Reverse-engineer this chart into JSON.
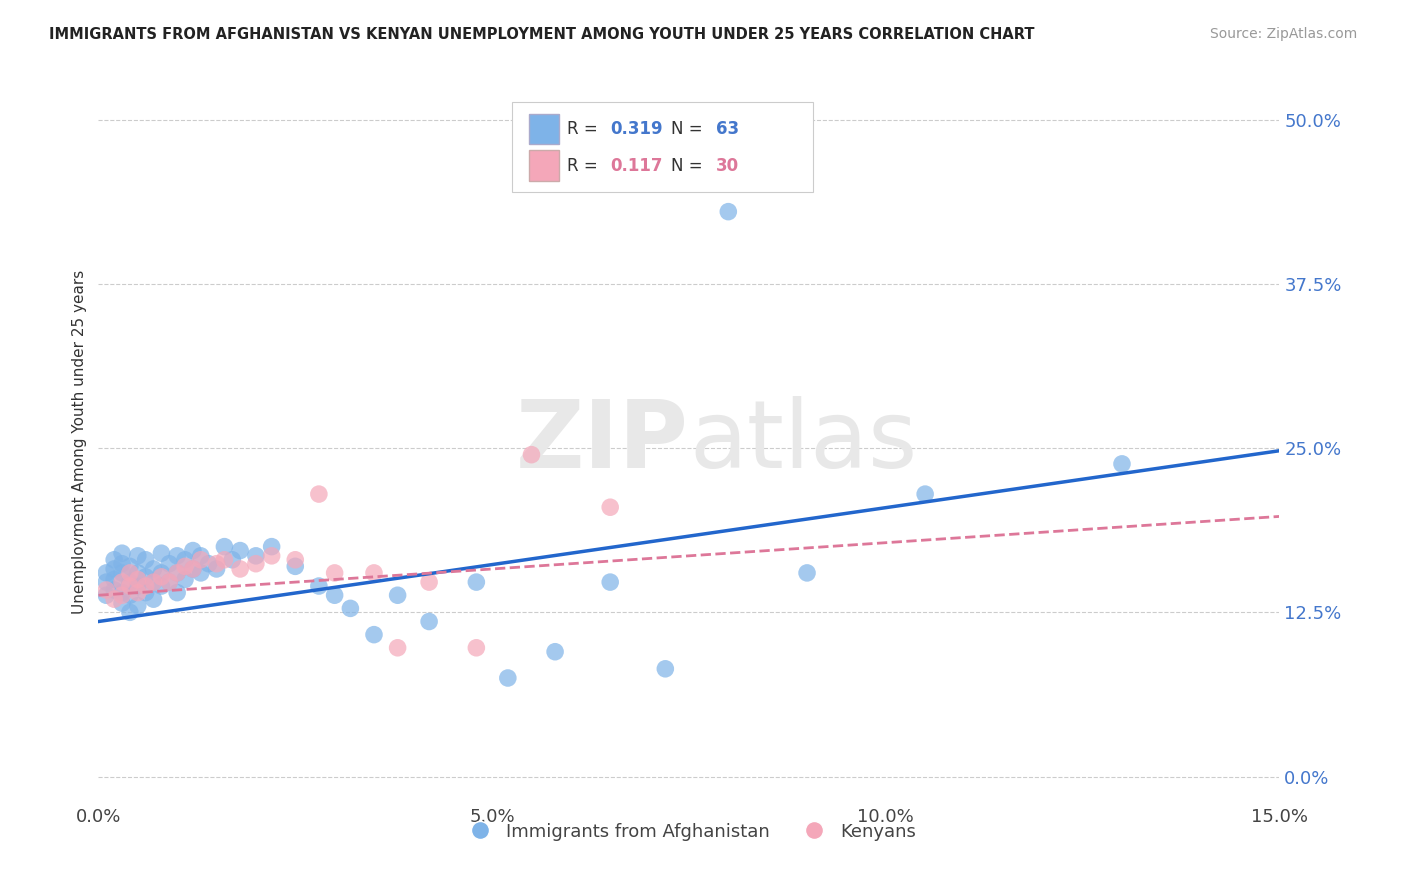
{
  "title": "IMMIGRANTS FROM AFGHANISTAN VS KENYAN UNEMPLOYMENT AMONG YOUTH UNDER 25 YEARS CORRELATION CHART",
  "source": "Source: ZipAtlas.com",
  "ylabel": "Unemployment Among Youth under 25 years",
  "xmin": 0.0,
  "xmax": 0.15,
  "ymin": -0.02,
  "ymax": 0.53,
  "yticks": [
    0.0,
    0.125,
    0.25,
    0.375,
    0.5
  ],
  "ytick_labels": [
    "0.0%",
    "12.5%",
    "25.0%",
    "37.5%",
    "50.0%"
  ],
  "xticks": [
    0.0,
    0.05,
    0.1,
    0.15
  ],
  "xtick_labels": [
    "0.0%",
    "5.0%",
    "10.0%",
    "15.0%"
  ],
  "legend_labels": [
    "Immigrants from Afghanistan",
    "Kenyans"
  ],
  "legend_R": [
    "0.319",
    "0.117"
  ],
  "legend_N": [
    "63",
    "30"
  ],
  "blue_color": "#7eb3e8",
  "pink_color": "#f4a7b9",
  "blue_line_color": "#2266cc",
  "pink_line_color": "#dd7799",
  "watermark_zip": "ZIP",
  "watermark_atlas": "atlas",
  "blue_scatter_x": [
    0.001,
    0.001,
    0.001,
    0.002,
    0.002,
    0.002,
    0.002,
    0.003,
    0.003,
    0.003,
    0.003,
    0.003,
    0.004,
    0.004,
    0.004,
    0.004,
    0.005,
    0.005,
    0.005,
    0.005,
    0.006,
    0.006,
    0.006,
    0.007,
    0.007,
    0.007,
    0.008,
    0.008,
    0.008,
    0.009,
    0.009,
    0.01,
    0.01,
    0.01,
    0.011,
    0.011,
    0.012,
    0.012,
    0.013,
    0.013,
    0.014,
    0.015,
    0.016,
    0.017,
    0.018,
    0.02,
    0.022,
    0.025,
    0.028,
    0.03,
    0.032,
    0.035,
    0.038,
    0.042,
    0.048,
    0.052,
    0.058,
    0.065,
    0.072,
    0.08,
    0.09,
    0.105,
    0.13
  ],
  "blue_scatter_y": [
    0.138,
    0.148,
    0.155,
    0.142,
    0.15,
    0.158,
    0.165,
    0.132,
    0.14,
    0.155,
    0.162,
    0.17,
    0.125,
    0.138,
    0.148,
    0.16,
    0.13,
    0.145,
    0.155,
    0.168,
    0.14,
    0.152,
    0.165,
    0.135,
    0.148,
    0.158,
    0.145,
    0.155,
    0.17,
    0.148,
    0.162,
    0.14,
    0.155,
    0.168,
    0.15,
    0.165,
    0.158,
    0.172,
    0.155,
    0.168,
    0.162,
    0.158,
    0.175,
    0.165,
    0.172,
    0.168,
    0.175,
    0.16,
    0.145,
    0.138,
    0.128,
    0.108,
    0.138,
    0.118,
    0.148,
    0.075,
    0.095,
    0.148,
    0.082,
    0.43,
    0.155,
    0.215,
    0.238
  ],
  "pink_scatter_x": [
    0.001,
    0.002,
    0.003,
    0.003,
    0.004,
    0.004,
    0.005,
    0.005,
    0.006,
    0.007,
    0.008,
    0.009,
    0.01,
    0.011,
    0.012,
    0.013,
    0.015,
    0.016,
    0.018,
    0.02,
    0.022,
    0.025,
    0.028,
    0.03,
    0.035,
    0.038,
    0.042,
    0.048,
    0.055,
    0.065
  ],
  "pink_scatter_y": [
    0.142,
    0.135,
    0.148,
    0.138,
    0.145,
    0.155,
    0.14,
    0.15,
    0.145,
    0.148,
    0.152,
    0.148,
    0.155,
    0.16,
    0.158,
    0.165,
    0.162,
    0.165,
    0.158,
    0.162,
    0.168,
    0.165,
    0.215,
    0.155,
    0.155,
    0.098,
    0.148,
    0.098,
    0.245,
    0.205
  ],
  "blue_trend_x": [
    0.0,
    0.15
  ],
  "blue_trend_y": [
    0.118,
    0.248
  ],
  "pink_trend_x": [
    0.0,
    0.15
  ],
  "pink_trend_y": [
    0.138,
    0.198
  ]
}
